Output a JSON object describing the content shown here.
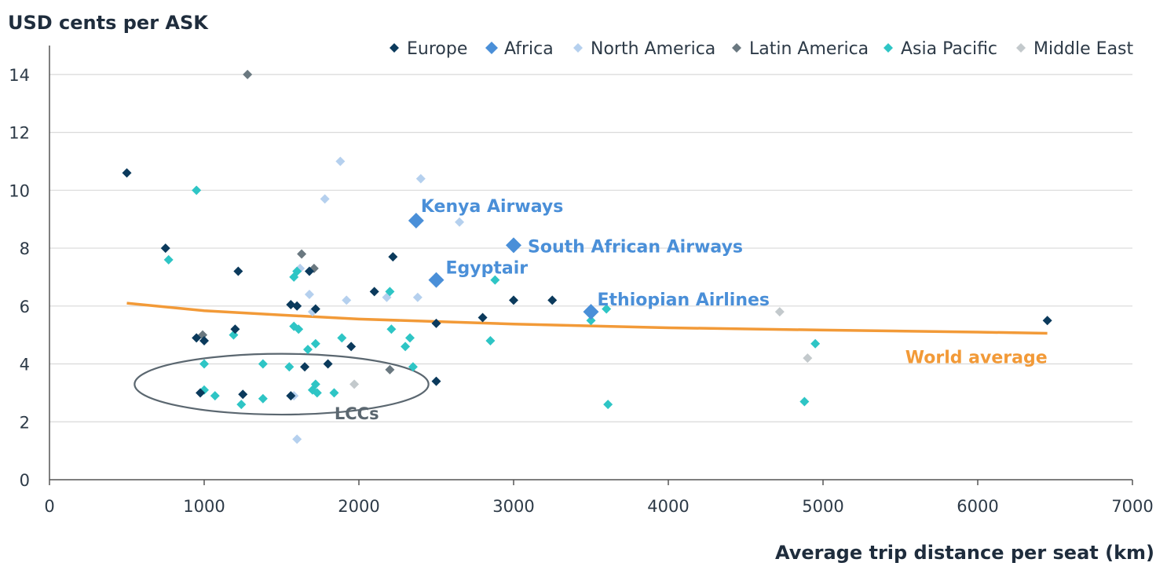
{
  "chart_data": {
    "type": "scatter",
    "title": "",
    "ylabel": "USD cents per ASK",
    "xlabel": "Average trip distance per seat (km)",
    "xlim": [
      0,
      7000
    ],
    "ylim": [
      0,
      15
    ],
    "xticks": [
      0,
      1000,
      2000,
      3000,
      4000,
      5000,
      6000,
      7000
    ],
    "yticks": [
      0,
      2,
      4,
      6,
      8,
      10,
      12,
      14
    ],
    "grid": "horizontal",
    "legend_position": "top",
    "colors": {
      "Europe": "#0b3a5c",
      "Africa": "#4a8fd8",
      "North America": "#b5d0ee",
      "Latin America": "#6a7880",
      "Asia Pacific": "#2ec5c5",
      "Middle East": "#c3c9cc",
      "world_average": "#f29a38",
      "lcc_ellipse": "#5b6770",
      "axis": "#555555",
      "grid": "#d9d9d9"
    },
    "series": [
      {
        "name": "Europe",
        "points": [
          [
            500,
            10.6
          ],
          [
            750,
            8.0
          ],
          [
            950,
            4.9
          ],
          [
            975,
            3.0
          ],
          [
            1000,
            4.8
          ],
          [
            1200,
            5.2
          ],
          [
            1220,
            7.2
          ],
          [
            1250,
            2.95
          ],
          [
            1560,
            6.05
          ],
          [
            1560,
            2.9
          ],
          [
            1600,
            6.0
          ],
          [
            1650,
            3.9
          ],
          [
            1680,
            7.2
          ],
          [
            1720,
            5.9
          ],
          [
            1800,
            4.0
          ],
          [
            1950,
            4.6
          ],
          [
            2100,
            6.5
          ],
          [
            2220,
            7.7
          ],
          [
            2500,
            5.4
          ],
          [
            2500,
            3.4
          ],
          [
            2800,
            5.6
          ],
          [
            3000,
            6.2
          ],
          [
            3250,
            6.2
          ],
          [
            6450,
            5.5
          ]
        ]
      },
      {
        "name": "Africa",
        "points": [
          [
            2370,
            8.95
          ],
          [
            3000,
            8.1
          ],
          [
            2500,
            6.9
          ],
          [
            3500,
            5.8
          ]
        ]
      },
      {
        "name": "North America",
        "points": [
          [
            1580,
            2.9
          ],
          [
            1600,
            1.4
          ],
          [
            1620,
            7.3
          ],
          [
            1680,
            6.4
          ],
          [
            1700,
            5.8
          ],
          [
            1780,
            9.7
          ],
          [
            1880,
            11.0
          ],
          [
            1920,
            6.2
          ],
          [
            2180,
            6.3
          ],
          [
            2380,
            6.3
          ],
          [
            2400,
            10.4
          ],
          [
            2650,
            8.9
          ]
        ]
      },
      {
        "name": "Latin America",
        "points": [
          [
            1280,
            14.0
          ],
          [
            990,
            5.0
          ],
          [
            1630,
            7.8
          ],
          [
            1710,
            7.3
          ],
          [
            2200,
            3.8
          ]
        ]
      },
      {
        "name": "Asia Pacific",
        "points": [
          [
            950,
            10.0
          ],
          [
            770,
            7.6
          ],
          [
            1000,
            4.0
          ],
          [
            1000,
            3.1
          ],
          [
            1070,
            2.9
          ],
          [
            1190,
            5.0
          ],
          [
            1240,
            2.6
          ],
          [
            1380,
            4.0
          ],
          [
            1380,
            2.8
          ],
          [
            1550,
            3.9
          ],
          [
            1580,
            5.3
          ],
          [
            1580,
            7.0
          ],
          [
            1600,
            7.2
          ],
          [
            1610,
            5.2
          ],
          [
            1670,
            4.5
          ],
          [
            1700,
            3.1
          ],
          [
            1720,
            4.7
          ],
          [
            1720,
            3.3
          ],
          [
            1730,
            3.0
          ],
          [
            1840,
            3.0
          ],
          [
            1890,
            4.9
          ],
          [
            2200,
            6.5
          ],
          [
            2210,
            5.2
          ],
          [
            2300,
            4.6
          ],
          [
            2330,
            4.9
          ],
          [
            2350,
            3.9
          ],
          [
            2850,
            4.8
          ],
          [
            2880,
            6.9
          ],
          [
            3500,
            5.5
          ],
          [
            3600,
            5.9
          ],
          [
            3610,
            2.6
          ],
          [
            4880,
            2.7
          ],
          [
            4950,
            4.7
          ]
        ]
      },
      {
        "name": "Middle East",
        "points": [
          [
            1970,
            3.3
          ],
          [
            4720,
            5.8
          ],
          [
            4900,
            4.2
          ]
        ]
      }
    ],
    "world_average": {
      "label": "World average",
      "points": [
        [
          500,
          6.1
        ],
        [
          1000,
          5.84
        ],
        [
          1500,
          5.69
        ],
        [
          2000,
          5.55
        ],
        [
          3000,
          5.38
        ],
        [
          4000,
          5.25
        ],
        [
          5000,
          5.17
        ],
        [
          6000,
          5.1
        ],
        [
          6450,
          5.06
        ]
      ]
    },
    "annotations": [
      {
        "text": "Kenya Airways",
        "x": 2370,
        "y": 8.95
      },
      {
        "text": "South African Airways",
        "x": 3000,
        "y": 8.1
      },
      {
        "text": "Egyptair",
        "x": 2500,
        "y": 6.9
      },
      {
        "text": "Ethiopian Airlines",
        "x": 3500,
        "y": 5.8
      }
    ],
    "lcc_region": {
      "label": "LCCs",
      "cx": 1500,
      "cy": 3.3,
      "rx": 950,
      "ry": 1.05
    }
  }
}
